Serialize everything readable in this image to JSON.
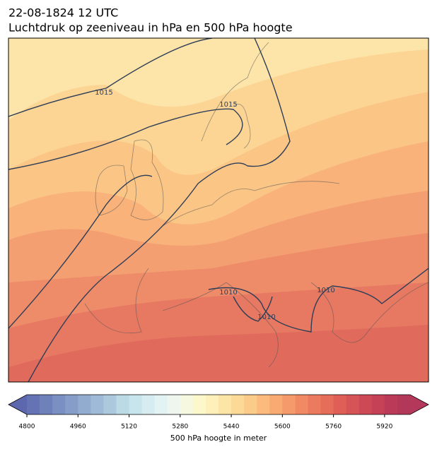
{
  "header": {
    "datetime": "22-08-1824 12 UTC",
    "title": "Luchtdruk op zeeniveau in hPa en 500 hPa hoogte"
  },
  "isobar_labels": [
    1015,
    1015,
    1010,
    1010,
    1010
  ],
  "colorbar": {
    "label": "500 hPa hoogte in meter",
    "lim": [
      4800,
      6000
    ],
    "ticks": [
      4800,
      4960,
      5120,
      5280,
      5440,
      5600,
      5760,
      5920
    ],
    "under_color": "#5d67ae",
    "over_color": "#b3385b",
    "colors": [
      "#6573b4",
      "#6f81bb",
      "#7a8fc2",
      "#869dc9",
      "#92acd0",
      "#9fbad6",
      "#acc8dd",
      "#badbe6",
      "#c8e4ec",
      "#d6ecf1",
      "#e3f2f3",
      "#eef6ee",
      "#f6f9df",
      "#fdf8cc",
      "#fef0b8",
      "#fde5a6",
      "#fcd997",
      "#fbcb89",
      "#fabb7c",
      "#f8aa72",
      "#f59a6b",
      "#f18a64",
      "#ec7a5e",
      "#e66d5a",
      "#df5f57",
      "#d65356",
      "#cd4956",
      "#c44156",
      "#bb3a57",
      "#b33759"
    ]
  }
}
